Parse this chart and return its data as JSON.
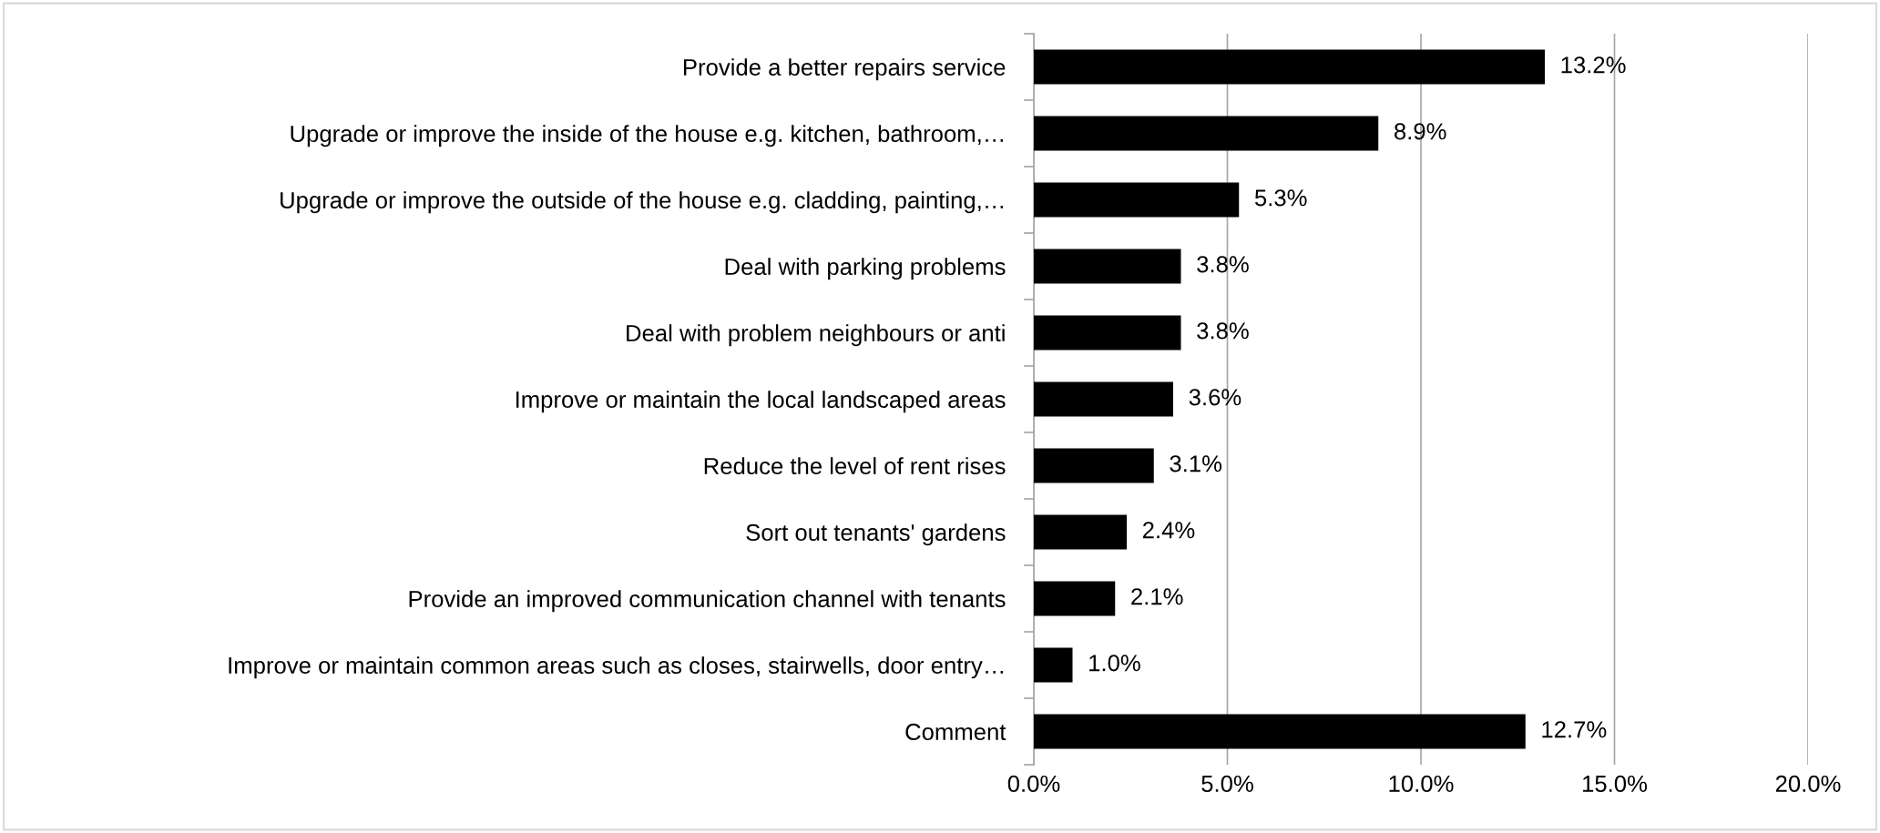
{
  "chart_data": {
    "type": "bar",
    "orientation": "horizontal",
    "categories": [
      "Provide a better repairs service",
      "Upgrade or improve the inside of the house e.g. kitchen, bathroom,…",
      "Upgrade or improve the outside of the house e.g. cladding, painting,…",
      "Deal with parking problems",
      "Deal with problem neighbours or anti",
      "Improve or maintain the local landscaped areas",
      "Reduce the level of rent rises",
      "Sort out tenants' gardens",
      "Provide an improved communication channel with tenants",
      "Improve or maintain common areas such as closes, stairwells, door entry…",
      "Comment"
    ],
    "values": [
      13.2,
      8.9,
      5.3,
      3.8,
      3.8,
      3.6,
      3.1,
      2.4,
      2.1,
      1.0,
      12.7
    ],
    "value_labels": [
      "13.2%",
      "8.9%",
      "5.3%",
      "3.8%",
      "3.8%",
      "3.6%",
      "3.1%",
      "2.4%",
      "2.1%",
      "1.0%",
      "12.7%"
    ],
    "color": "#000000",
    "xlim": [
      0,
      20
    ],
    "xticks": [
      {
        "value": 0,
        "label": "0.0%"
      },
      {
        "value": 5,
        "label": "5.0%"
      },
      {
        "value": 10,
        "label": "10.0%"
      },
      {
        "value": 15,
        "label": "15.0%"
      },
      {
        "value": 20,
        "label": "20.0%"
      }
    ],
    "grid": "x",
    "legend": false
  }
}
